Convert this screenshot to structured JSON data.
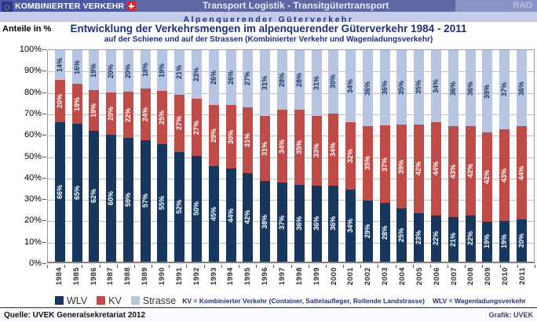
{
  "header": {
    "brand": "KOMBINIERTER VERKEHR",
    "center_title": "Transport Logistik - Transitgütertransport",
    "right_label": "RAO",
    "subheader": "Alpenquerender Güterverkehr"
  },
  "titles": {
    "axis_unit": "Anteile in %",
    "title": "Entwicklung der Verkehrsmengen im alpenquerender Güterverkehr 1984 - 2011",
    "subtitle": "auf der Schiene und auf der Strassen (Kombinierter Verkehr und Wagenladungsverkehr)"
  },
  "chart_data": {
    "type": "bar",
    "stacked": true,
    "unit": "%",
    "ylim": [
      0,
      100
    ],
    "ytick_step": 10,
    "grid": true,
    "legend_position": "bottom",
    "categories": [
      "1984",
      "1985",
      "1986",
      "1987",
      "1988",
      "1989",
      "1990",
      "1991",
      "1992",
      "1993",
      "1994",
      "1995",
      "1996",
      "1997",
      "1998",
      "1999",
      "2000",
      "2001",
      "2002",
      "2003",
      "2004",
      "2005",
      "2006",
      "2007",
      "2008",
      "2009",
      "2010",
      "2011"
    ],
    "series": [
      {
        "name": "WLV",
        "color": "#17375E",
        "label_color": "#ffffff",
        "values": [
          66,
          65,
          62,
          60,
          59,
          57,
          55,
          52,
          50,
          45,
          44,
          42,
          38,
          37,
          36,
          36,
          36,
          34,
          29,
          28,
          25,
          23,
          22,
          21,
          22,
          19,
          19,
          20
        ]
      },
      {
        "name": "KV",
        "color": "#BE4B48",
        "label_color": "#ffffff",
        "values": [
          20,
          19,
          19,
          20,
          22,
          24,
          25,
          27,
          27,
          29,
          30,
          31,
          31,
          34,
          35,
          33,
          34,
          32,
          35,
          37,
          39,
          42,
          44,
          43,
          42,
          42,
          43,
          44
        ]
      },
      {
        "name": "Strasse",
        "color": "#B7C5E3",
        "label_color": "#17375E",
        "values": [
          14,
          16,
          19,
          20,
          20,
          18,
          19,
          21,
          23,
          26,
          26,
          27,
          31,
          28,
          28,
          31,
          30,
          34,
          36,
          36,
          35,
          35,
          34,
          36,
          36,
          39,
          37,
          36
        ]
      }
    ]
  },
  "legend": {
    "def_kv": "KV = Kombinierter Verkehr (Container, Sattelaufleger, Rollende Landstrasse)",
    "def_wlv": "WLV = Wagenladungsverkehr"
  },
  "footer": {
    "source": "Quelle: UVEK Generalsekretariat 2012",
    "credit": "Grafik: UVEK"
  }
}
